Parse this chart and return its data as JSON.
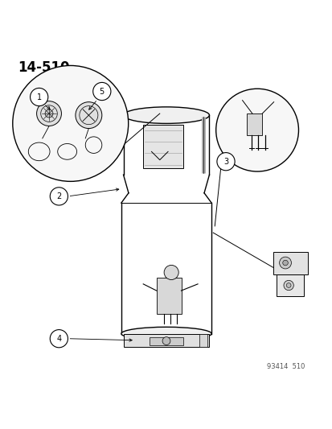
{
  "title_label": "14-510",
  "footer_label": "93414  510",
  "bg_color": "#ffffff",
  "line_color": "#000000",
  "fig_width": 4.14,
  "fig_height": 5.33,
  "dpi": 100,
  "title_font_size": 12,
  "footer_font_size": 6
}
